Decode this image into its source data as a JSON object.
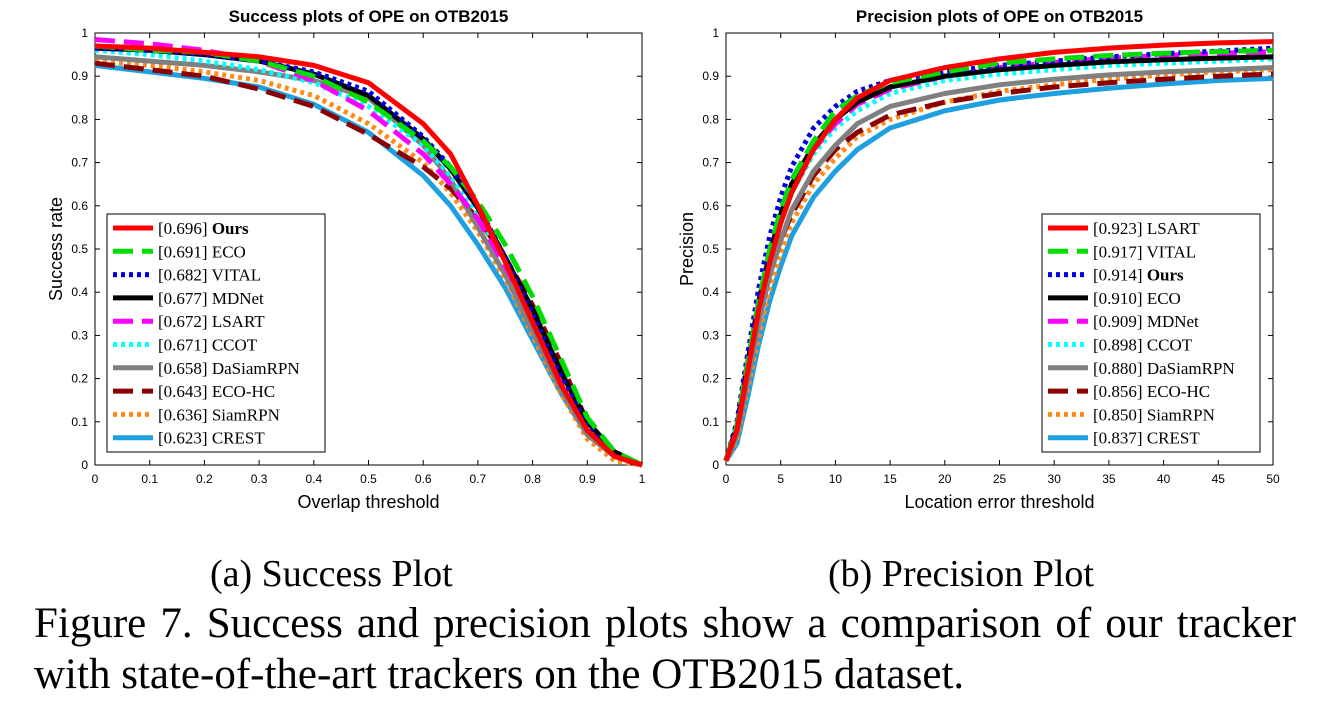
{
  "figure": {
    "subcaption_a": "(a)  Success Plot",
    "subcaption_b": "(b)  Precision Plot",
    "caption": "Figure 7. Success and precision plots show a comparison of our tracker with state-of-the-art trackers on the OTB2015 dataset."
  },
  "chart_data": [
    {
      "type": "line",
      "title": "Success plots of OPE on OTB2015",
      "xlabel": "Overlap threshold",
      "ylabel": "Success rate",
      "xlim": [
        0,
        1
      ],
      "ylim": [
        0,
        1
      ],
      "xticks": [
        "0",
        "0.1",
        "0.2",
        "0.3",
        "0.4",
        "0.5",
        "0.6",
        "0.7",
        "0.8",
        "0.9",
        "1"
      ],
      "yticks": [
        "0",
        "0.1",
        "0.2",
        "0.3",
        "0.4",
        "0.5",
        "0.6",
        "0.7",
        "0.8",
        "0.9",
        "1"
      ],
      "grid": false,
      "legend": "bottom-left",
      "x": [
        0,
        0.1,
        0.2,
        0.3,
        0.4,
        0.5,
        0.6,
        0.65,
        0.7,
        0.75,
        0.8,
        0.85,
        0.9,
        0.95,
        1.0
      ],
      "series": [
        {
          "name": "[0.696] Ours",
          "bold": true,
          "color": "#ff0000",
          "dash": "solid",
          "values": [
            0.97,
            0.965,
            0.955,
            0.945,
            0.925,
            0.885,
            0.79,
            0.72,
            0.6,
            0.47,
            0.33,
            0.19,
            0.08,
            0.02,
            0
          ]
        },
        {
          "name": "[0.691] ECO",
          "color": "#00dd00",
          "dash": "longdash",
          "values": [
            0.97,
            0.96,
            0.955,
            0.935,
            0.9,
            0.84,
            0.75,
            0.69,
            0.61,
            0.51,
            0.39,
            0.25,
            0.11,
            0.03,
            0
          ]
        },
        {
          "name": "[0.682] VITAL",
          "color": "#0000dd",
          "dash": "dot",
          "values": [
            0.965,
            0.96,
            0.95,
            0.935,
            0.91,
            0.865,
            0.76,
            0.69,
            0.6,
            0.48,
            0.35,
            0.21,
            0.09,
            0.02,
            0
          ]
        },
        {
          "name": "[0.677] MDNet",
          "color": "#000000",
          "dash": "solid",
          "values": [
            0.965,
            0.96,
            0.95,
            0.935,
            0.905,
            0.855,
            0.755,
            0.685,
            0.595,
            0.48,
            0.36,
            0.22,
            0.1,
            0.03,
            0
          ]
        },
        {
          "name": "[0.672] LSART",
          "color": "#ff00ff",
          "dash": "longdash",
          "values": [
            0.985,
            0.975,
            0.96,
            0.935,
            0.89,
            0.82,
            0.72,
            0.65,
            0.57,
            0.46,
            0.34,
            0.2,
            0.08,
            0.02,
            0
          ]
        },
        {
          "name": "[0.671] CCOT",
          "color": "#00ffff",
          "dash": "dot",
          "values": [
            0.96,
            0.95,
            0.935,
            0.915,
            0.885,
            0.83,
            0.74,
            0.67,
            0.58,
            0.47,
            0.34,
            0.2,
            0.08,
            0.02,
            0
          ]
        },
        {
          "name": "[0.658] DaSiamRPN",
          "color": "#808080",
          "dash": "solid",
          "values": [
            0.945,
            0.935,
            0.925,
            0.91,
            0.89,
            0.85,
            0.74,
            0.66,
            0.55,
            0.44,
            0.31,
            0.18,
            0.07,
            0.02,
            0
          ]
        },
        {
          "name": "[0.643] ECO-HC",
          "color": "#8b0000",
          "dash": "longdash",
          "values": [
            0.93,
            0.915,
            0.9,
            0.87,
            0.83,
            0.765,
            0.69,
            0.64,
            0.57,
            0.48,
            0.37,
            0.24,
            0.1,
            0.03,
            0
          ]
        },
        {
          "name": "[0.636] SiamRPN",
          "color": "#ff8c1a",
          "dash": "dot",
          "values": [
            0.935,
            0.925,
            0.91,
            0.89,
            0.855,
            0.79,
            0.7,
            0.63,
            0.54,
            0.43,
            0.3,
            0.17,
            0.06,
            0.01,
            0
          ]
        },
        {
          "name": "[0.623] CREST",
          "color": "#1e9fe0",
          "dash": "solid",
          "values": [
            0.925,
            0.91,
            0.895,
            0.875,
            0.835,
            0.77,
            0.67,
            0.6,
            0.51,
            0.41,
            0.29,
            0.17,
            0.07,
            0.02,
            0
          ]
        }
      ]
    },
    {
      "type": "line",
      "title": "Precision plots of OPE on OTB2015",
      "xlabel": "Location error threshold",
      "ylabel": "Precision",
      "xlim": [
        0,
        50
      ],
      "ylim": [
        0,
        1
      ],
      "xticks": [
        "0",
        "5",
        "10",
        "15",
        "20",
        "25",
        "30",
        "35",
        "40",
        "45",
        "50"
      ],
      "yticks": [
        "0",
        "0.1",
        "0.2",
        "0.3",
        "0.4",
        "0.5",
        "0.6",
        "0.7",
        "0.8",
        "0.9",
        "1"
      ],
      "grid": false,
      "legend": "bottom-right",
      "x": [
        0,
        1,
        2,
        3,
        4,
        5,
        6,
        8,
        10,
        12,
        15,
        20,
        25,
        30,
        35,
        40,
        45,
        50
      ],
      "series": [
        {
          "name": "[0.923] LSART",
          "color": "#ff0000",
          "dash": "solid",
          "values": [
            0.01,
            0.08,
            0.22,
            0.36,
            0.47,
            0.56,
            0.63,
            0.73,
            0.8,
            0.85,
            0.89,
            0.92,
            0.94,
            0.955,
            0.965,
            0.972,
            0.977,
            0.98
          ]
        },
        {
          "name": "[0.917] VITAL",
          "color": "#00dd00",
          "dash": "longdash",
          "values": [
            0.01,
            0.09,
            0.24,
            0.38,
            0.5,
            0.59,
            0.66,
            0.75,
            0.82,
            0.855,
            0.885,
            0.91,
            0.93,
            0.94,
            0.948,
            0.953,
            0.957,
            0.96
          ]
        },
        {
          "name": "[0.914] Ours",
          "bold": true,
          "color": "#0000dd",
          "dash": "dot",
          "values": [
            0.01,
            0.1,
            0.26,
            0.41,
            0.53,
            0.62,
            0.69,
            0.78,
            0.83,
            0.865,
            0.89,
            0.91,
            0.925,
            0.935,
            0.945,
            0.952,
            0.958,
            0.965
          ]
        },
        {
          "name": "[0.910] ECO",
          "color": "#000000",
          "dash": "solid",
          "values": [
            0.01,
            0.09,
            0.24,
            0.38,
            0.49,
            0.58,
            0.65,
            0.74,
            0.8,
            0.84,
            0.875,
            0.9,
            0.915,
            0.925,
            0.933,
            0.938,
            0.942,
            0.945
          ]
        },
        {
          "name": "[0.909] MDNet",
          "color": "#ff00ff",
          "dash": "longdash",
          "values": [
            0.01,
            0.09,
            0.23,
            0.37,
            0.48,
            0.57,
            0.64,
            0.73,
            0.79,
            0.835,
            0.87,
            0.9,
            0.92,
            0.932,
            0.942,
            0.948,
            0.953,
            0.957
          ]
        },
        {
          "name": "[0.898] CCOT",
          "color": "#00ffff",
          "dash": "dot",
          "values": [
            0.01,
            0.09,
            0.23,
            0.36,
            0.47,
            0.56,
            0.63,
            0.72,
            0.78,
            0.82,
            0.86,
            0.89,
            0.905,
            0.915,
            0.925,
            0.93,
            0.935,
            0.94
          ]
        },
        {
          "name": "[0.880] DaSiamRPN",
          "color": "#808080",
          "dash": "solid",
          "values": [
            0.01,
            0.07,
            0.2,
            0.33,
            0.44,
            0.52,
            0.59,
            0.68,
            0.74,
            0.79,
            0.83,
            0.86,
            0.88,
            0.893,
            0.903,
            0.91,
            0.915,
            0.92
          ]
        },
        {
          "name": "[0.856] ECO-HC",
          "color": "#8b0000",
          "dash": "longdash",
          "values": [
            0.01,
            0.08,
            0.21,
            0.34,
            0.44,
            0.52,
            0.58,
            0.67,
            0.73,
            0.77,
            0.81,
            0.84,
            0.86,
            0.875,
            0.885,
            0.893,
            0.9,
            0.905
          ]
        },
        {
          "name": "[0.850] SiamRPN",
          "color": "#ff8c1a",
          "dash": "dot",
          "values": [
            0.01,
            0.06,
            0.18,
            0.3,
            0.41,
            0.49,
            0.56,
            0.65,
            0.71,
            0.76,
            0.8,
            0.84,
            0.865,
            0.88,
            0.893,
            0.903,
            0.91,
            0.915
          ]
        },
        {
          "name": "[0.837] CREST",
          "color": "#1e9fe0",
          "dash": "solid",
          "values": [
            0.01,
            0.05,
            0.16,
            0.28,
            0.38,
            0.46,
            0.53,
            0.62,
            0.68,
            0.73,
            0.78,
            0.82,
            0.845,
            0.86,
            0.872,
            0.882,
            0.89,
            0.895
          ]
        }
      ]
    }
  ]
}
